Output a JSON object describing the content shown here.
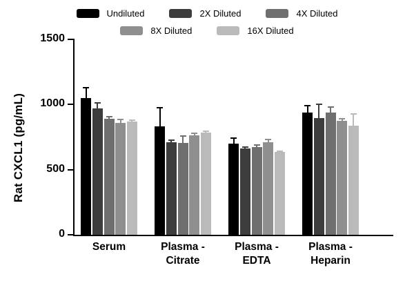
{
  "chart_data": {
    "type": "bar",
    "title": "",
    "xlabel": "",
    "ylabel": "Rat CXCL1 (pg/mL)",
    "ylim": [
      0,
      1500
    ],
    "yticks": [
      0,
      500,
      1000,
      1500
    ],
    "grid": false,
    "legend_position": "top",
    "categories": [
      "Serum",
      "Plasma -\nCitrate",
      "Plasma -\nEDTA",
      "Plasma -\nHeparin"
    ],
    "series": [
      {
        "name": "Undiluted",
        "color": "#000000",
        "values": [
          1050,
          830,
          700,
          940
        ],
        "errors": [
          80,
          145,
          40,
          50
        ]
      },
      {
        "name": "2X Diluted",
        "color": "#3d3d3d",
        "values": [
          970,
          710,
          665,
          895
        ],
        "errors": [
          45,
          15,
          10,
          105
        ]
      },
      {
        "name": "4X Diluted",
        "color": "#6f6f6f",
        "values": [
          890,
          705,
          675,
          940
        ],
        "errors": [
          15,
          55,
          15,
          40
        ]
      },
      {
        "name": "8X Diluted",
        "color": "#8f8f8f",
        "values": [
          860,
          765,
          710,
          875
        ],
        "errors": [
          25,
          15,
          20,
          15
        ]
      },
      {
        "name": "16X Diluted",
        "color": "#bababa",
        "values": [
          870,
          785,
          635,
          840
        ],
        "errors": [
          10,
          10,
          8,
          90
        ]
      }
    ],
    "legend_rows": [
      [
        0,
        1,
        2
      ],
      [
        3,
        4
      ]
    ]
  }
}
